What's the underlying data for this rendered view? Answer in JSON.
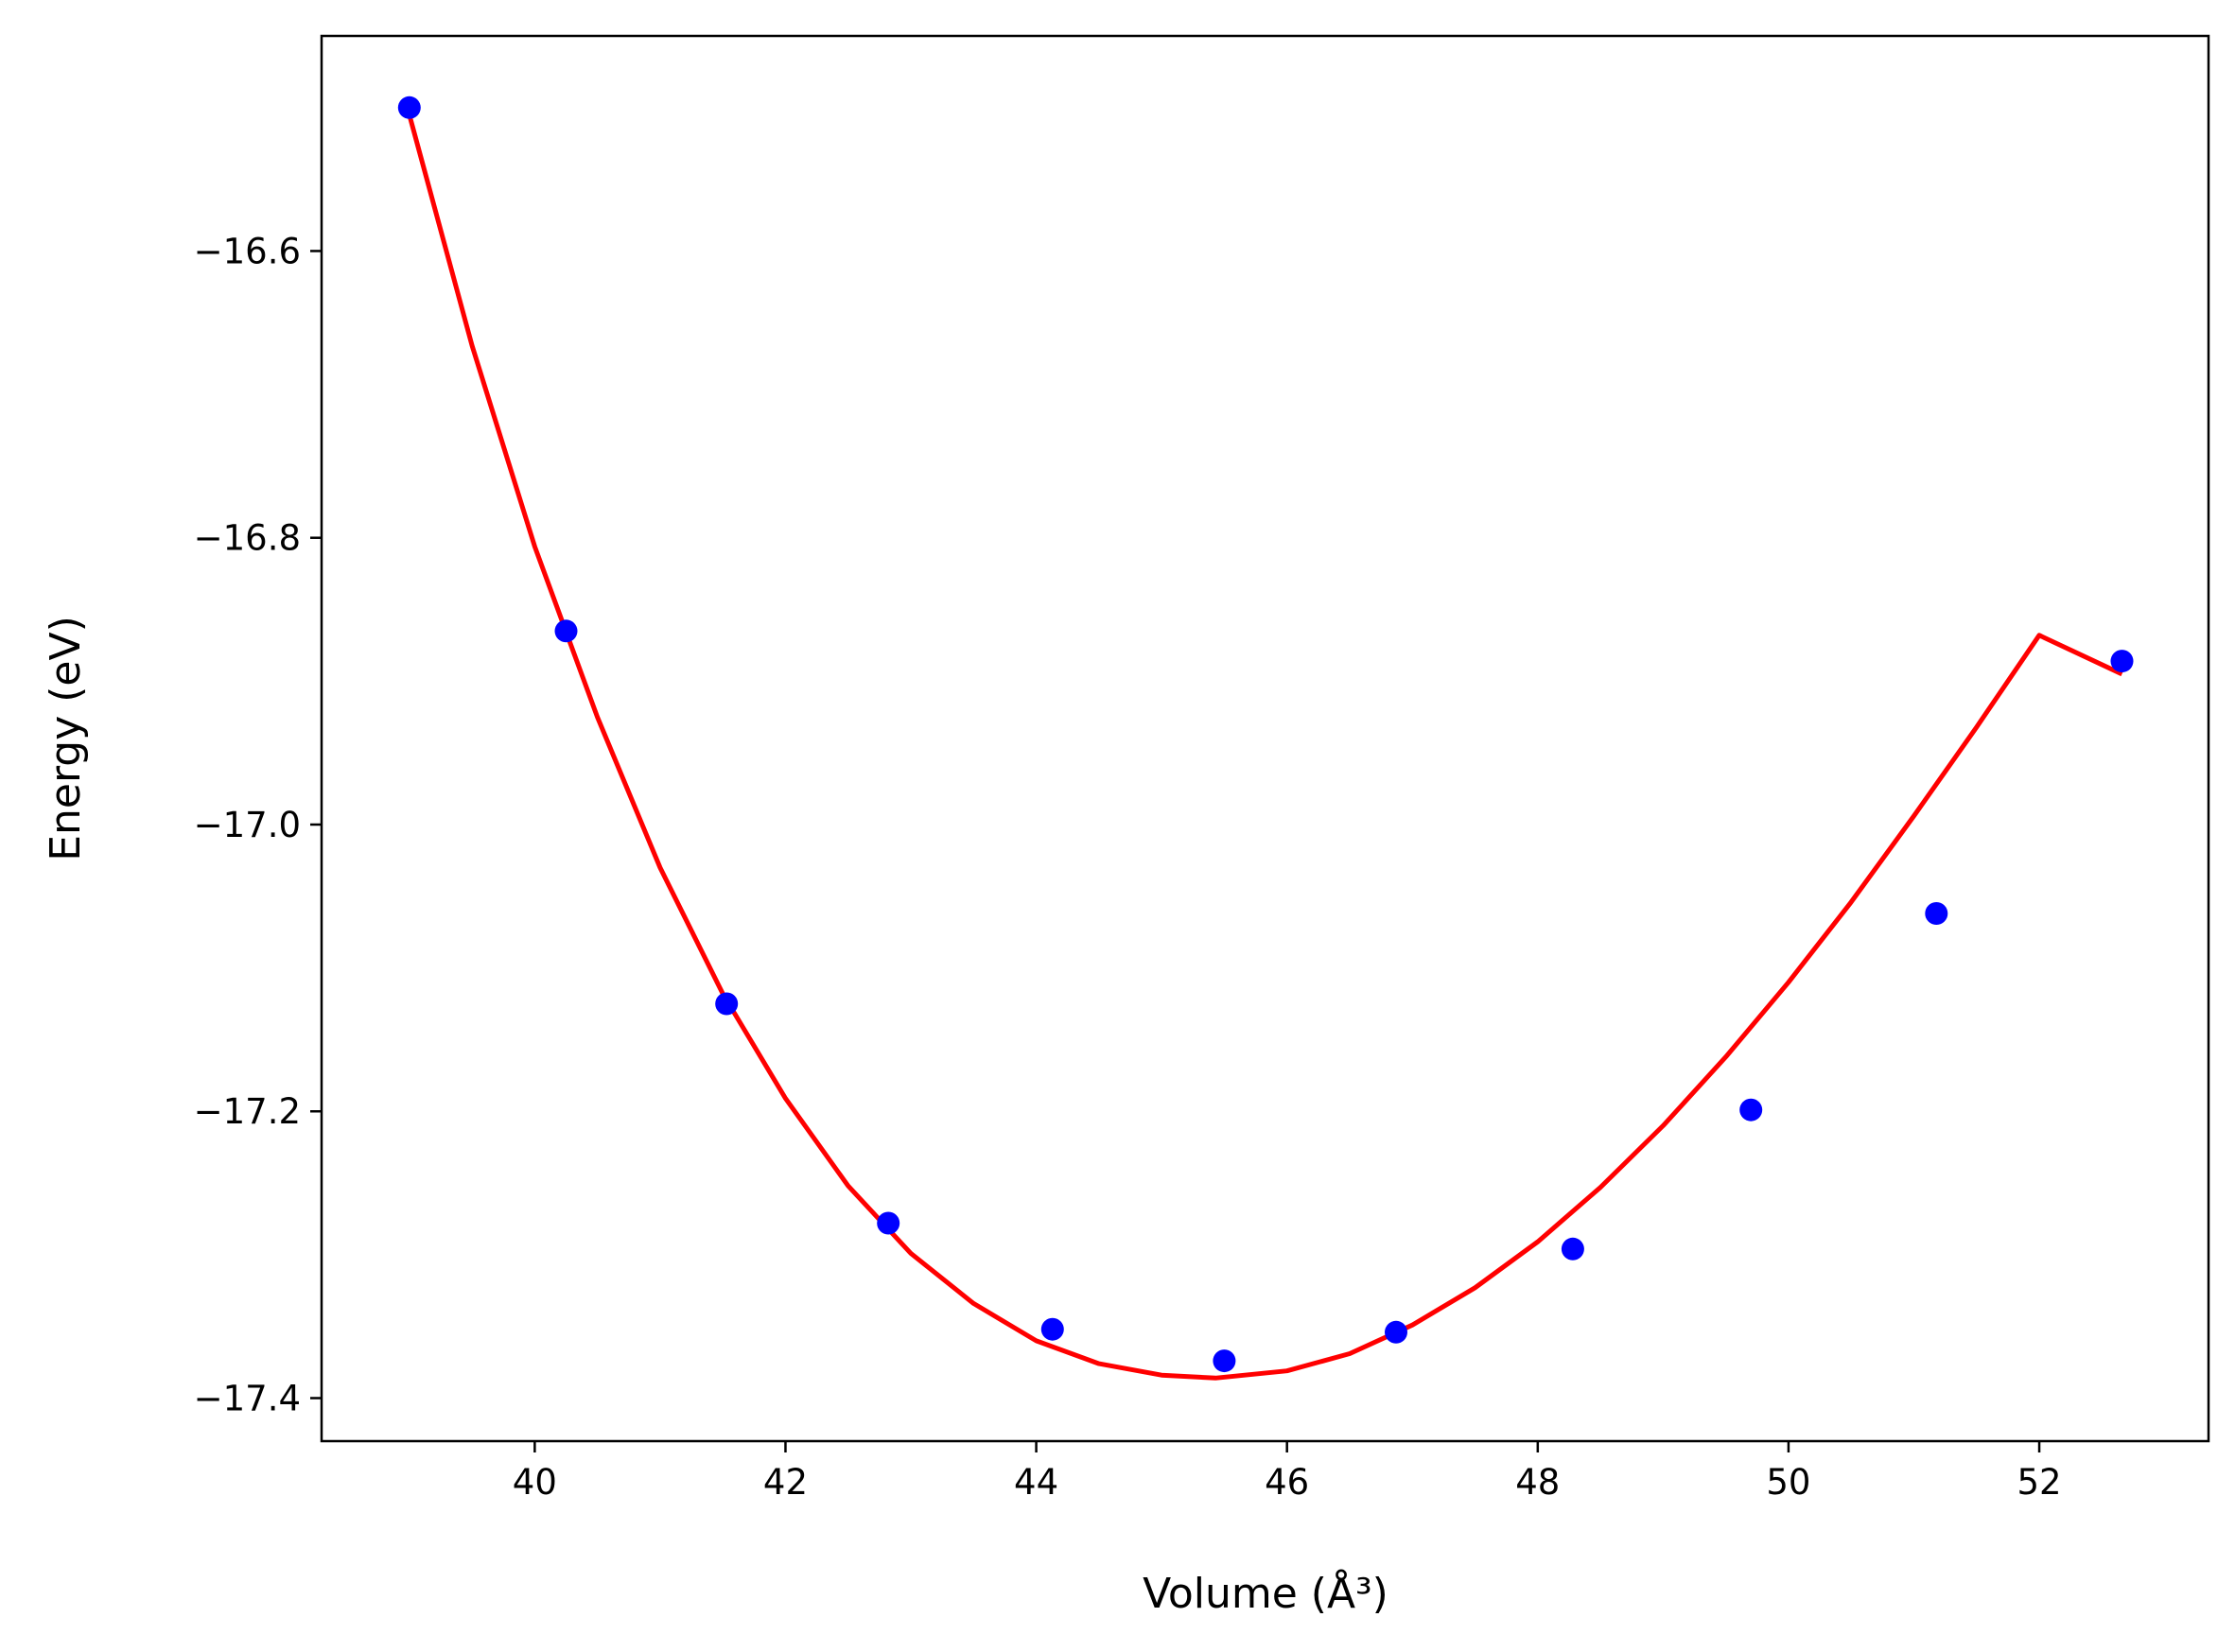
{
  "chart_data": {
    "type": "scatter",
    "title": "",
    "xlabel": "Volume (Å³)",
    "ylabel": "Energy (eV)",
    "xlim": [
      38.3,
      53.35
    ],
    "ylim": [
      -17.43,
      -16.45
    ],
    "x_ticks": [
      40,
      42,
      44,
      46,
      48,
      50,
      52
    ],
    "y_ticks": [
      -17.4,
      -17.2,
      -17.0,
      -16.8,
      -16.6
    ],
    "x_tick_labels": [
      "40",
      "42",
      "44",
      "46",
      "48",
      "50",
      "52"
    ],
    "y_tick_labels": [
      "−17.4",
      "−17.2",
      "−17.0",
      "−16.8",
      "−16.6"
    ],
    "grid": false,
    "legend": "none",
    "series": [
      {
        "kind": "points",
        "color": "#0000ff",
        "x": [
          39.0,
          40.25,
          41.53,
          42.82,
          44.13,
          45.5,
          46.87,
          48.28,
          49.7,
          51.18,
          52.66
        ],
        "y": [
          -16.5,
          -16.865,
          -17.125,
          -17.278,
          -17.352,
          -17.374,
          -17.354,
          -17.296,
          -17.199,
          -17.062,
          -16.886
        ]
      },
      {
        "kind": "fit",
        "color": "#ff0000",
        "x": [
          39.0,
          39.5,
          40.0,
          40.5,
          41.0,
          41.5,
          42.0,
          42.5,
          43.0,
          43.5,
          44.0,
          44.5,
          45.0,
          45.43,
          46.0,
          46.5,
          47.0,
          47.5,
          48.0,
          48.5,
          49.0,
          49.5,
          50.0,
          50.5,
          51.0,
          51.5,
          52.0,
          52.66
        ],
        "y": [
          -16.505,
          -16.666,
          -16.806,
          -16.925,
          -17.03,
          -17.118,
          -17.191,
          -17.252,
          -17.299,
          -17.334,
          -17.36,
          -17.376,
          -17.384,
          -17.386,
          -17.381,
          -17.369,
          -17.349,
          -17.323,
          -17.291,
          -17.253,
          -17.21,
          -17.162,
          -17.11,
          -17.054,
          -16.994,
          -16.932,
          -16.868,
          -16.895
        ]
      }
    ]
  }
}
